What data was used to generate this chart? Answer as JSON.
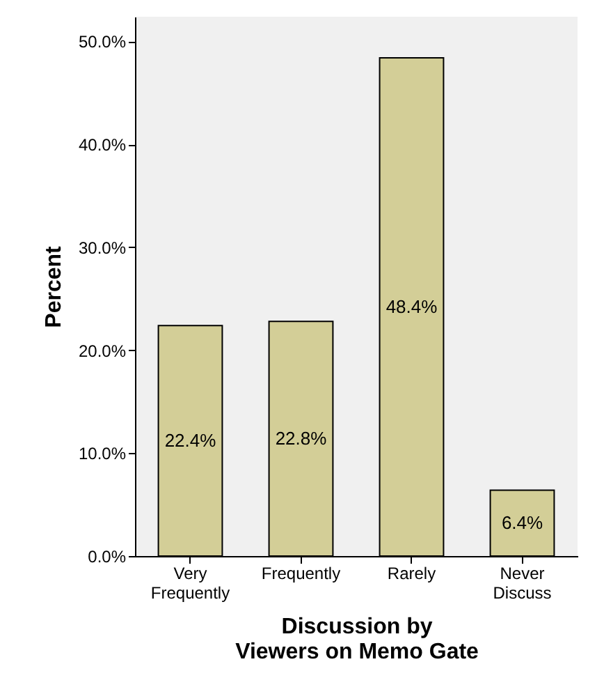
{
  "chart_data": {
    "type": "bar",
    "xlabel": "Discussion by Viewers on Memo Gate",
    "ylabel": "Percent",
    "categories": [
      "Very Frequently",
      "Frequently",
      "Rarely",
      "Never Discuss"
    ],
    "values": [
      22.4,
      22.8,
      48.4,
      6.4
    ],
    "value_labels": [
      "22.4%",
      "22.8%",
      "48.4%",
      "6.4%"
    ],
    "color": "#d3ce97",
    "ylim": [
      0,
      52.4
    ],
    "yticks": [
      {
        "value": 0,
        "label": "0.0%"
      },
      {
        "value": 10,
        "label": "10.0%"
      },
      {
        "value": 20,
        "label": "20.0%"
      },
      {
        "value": 30,
        "label": "30.0%"
      },
      {
        "value": 40,
        "label": "40.0%"
      },
      {
        "value": 50,
        "label": "50.0%"
      }
    ],
    "grid": false
  }
}
